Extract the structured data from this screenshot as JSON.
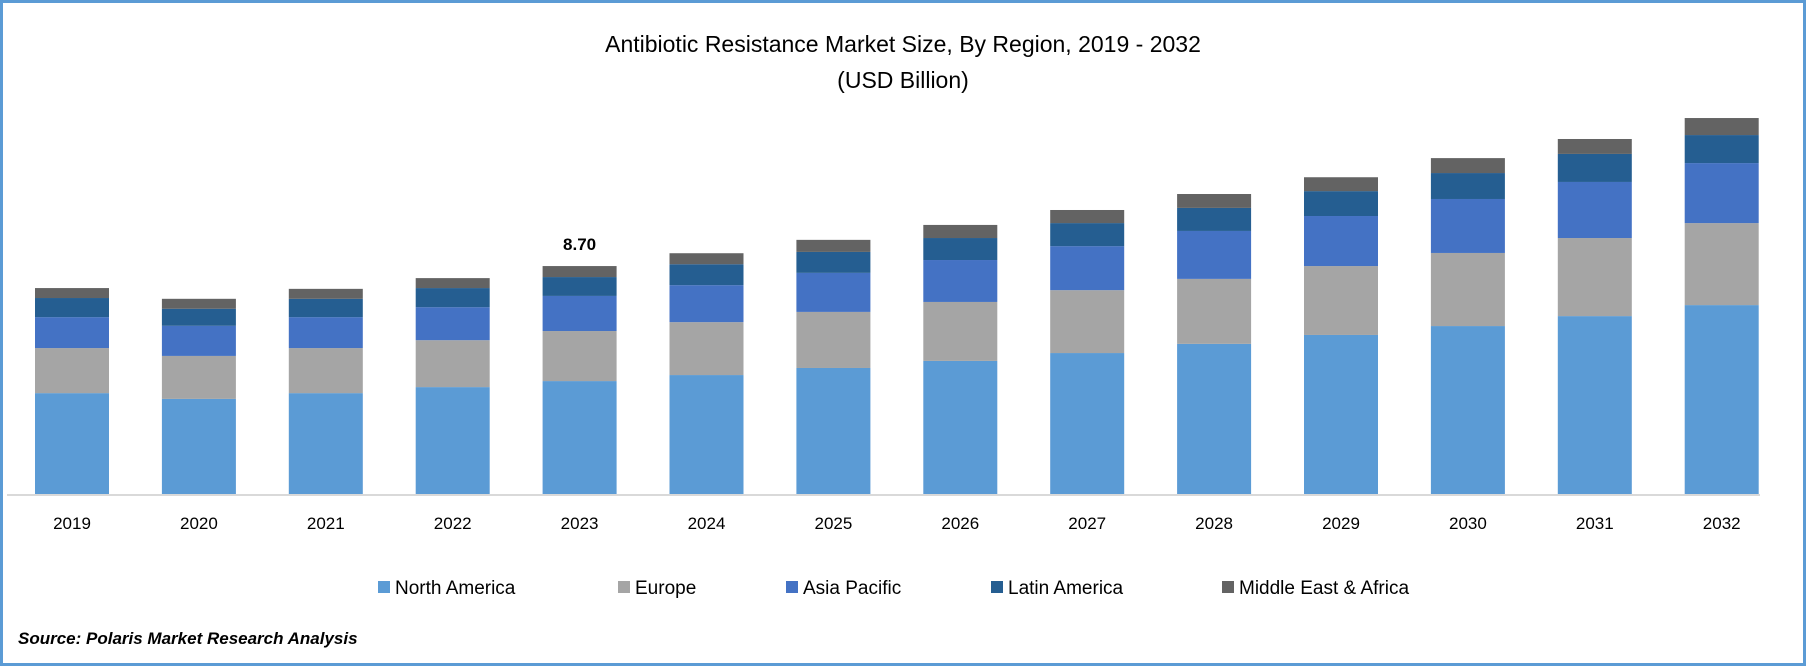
{
  "chart_data": {
    "type": "bar",
    "stacked": true,
    "title": "Antibiotic Resistance Market Size, By Region, 2019 - 2032",
    "subtitle": "(USD Billion)",
    "xlabel": "",
    "ylabel": "",
    "ylim": [
      0,
      15
    ],
    "grid": false,
    "legend_position": "bottom",
    "categories": [
      "2019",
      "2020",
      "2021",
      "2022",
      "2023",
      "2024",
      "2025",
      "2026",
      "2027",
      "2028",
      "2029",
      "2030",
      "2031",
      "2032"
    ],
    "series": [
      {
        "name": "North America",
        "color": "#5b9bd5",
        "values": [
          3.85,
          3.63,
          3.85,
          4.08,
          4.31,
          4.54,
          4.81,
          5.08,
          5.38,
          5.73,
          6.07,
          6.41,
          6.79,
          7.21
        ]
      },
      {
        "name": "Europe",
        "color": "#a5a5a5",
        "values": [
          1.72,
          1.64,
          1.72,
          1.79,
          1.91,
          2.02,
          2.14,
          2.25,
          2.4,
          2.48,
          2.63,
          2.79,
          2.98,
          3.13
        ]
      },
      {
        "name": "Asia Pacific",
        "color": "#4472c4",
        "values": [
          1.18,
          1.15,
          1.18,
          1.26,
          1.34,
          1.41,
          1.49,
          1.6,
          1.68,
          1.83,
          1.91,
          2.06,
          2.14,
          2.29
        ]
      },
      {
        "name": "Latin America",
        "color": "#255e91",
        "values": [
          0.73,
          0.65,
          0.7,
          0.73,
          0.72,
          0.8,
          0.8,
          0.84,
          0.88,
          0.88,
          0.95,
          0.99,
          1.07,
          1.07
        ]
      },
      {
        "name": "Middle East & Africa",
        "color": "#636363",
        "values": [
          0.38,
          0.38,
          0.38,
          0.38,
          0.42,
          0.42,
          0.46,
          0.5,
          0.5,
          0.53,
          0.53,
          0.57,
          0.57,
          0.65
        ]
      }
    ],
    "annotations": [
      {
        "category": "2023",
        "text": "8.70"
      }
    ]
  },
  "source": "Source: Polaris Market Research Analysis",
  "frame_color": "#5b9bd5",
  "axis_color": "#d9d9d9"
}
